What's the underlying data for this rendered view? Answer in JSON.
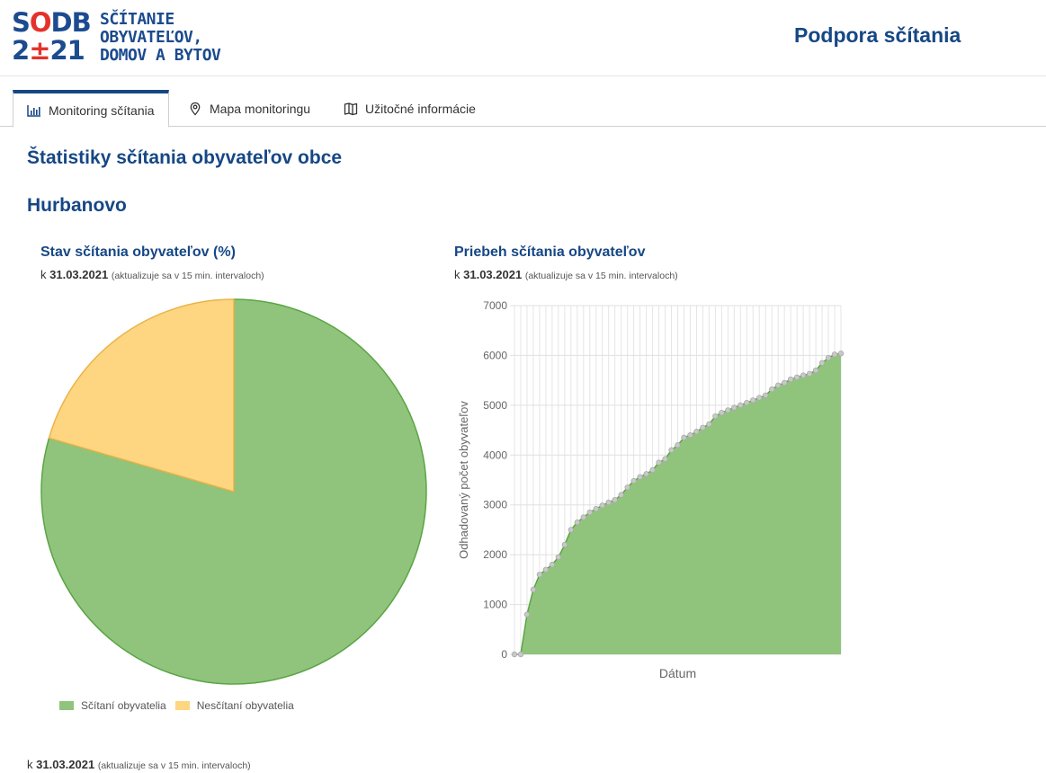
{
  "brand": {
    "mark_line1_a": "S",
    "mark_line1_b": "O",
    "mark_line1_c": "DB",
    "mark_line2_a": "2",
    "mark_line2_b": "±",
    "mark_line2_c": "21",
    "text_line1": "SČÍTANIE",
    "text_line2": "OBYVATEĽOV,",
    "text_line3": "DOMOV A BYTOV",
    "colors": {
      "blue": "#1c4b8f",
      "red": "#e4322b"
    }
  },
  "header": {
    "title": "Podpora sčítania"
  },
  "tabs": [
    {
      "label": "Monitoring sčítania",
      "icon": "bar-chart-icon",
      "active": true
    },
    {
      "label": "Mapa monitoringu",
      "icon": "map-pin-icon",
      "active": false
    },
    {
      "label": "Užitočné informácie",
      "icon": "book-icon",
      "active": false
    }
  ],
  "main": {
    "heading": "Štatistiky sčítania obyvateľov obce",
    "town": "Hurbanovo",
    "date_prefix": "k",
    "date": "31.03.2021",
    "update_note": "(aktualizuje sa v 15 min. intervaloch)"
  },
  "pie_panel": {
    "title": "Stav sčítania obyvateľov (%)"
  },
  "line_panel": {
    "title": "Priebeh sčítania obyvateľov"
  },
  "chart_data": [
    {
      "type": "pie",
      "title": "Stav sčítania obyvateľov (%)",
      "slices": [
        {
          "name": "Sčítaní obyvatelia",
          "value": 79.5,
          "color": "#90c47c",
          "stroke": "#5aa544"
        },
        {
          "name": "Nesčítaní obyvatelia",
          "value": 20.5,
          "color": "#fed580",
          "stroke": "#eab44a"
        }
      ],
      "legend": "bottom-left"
    },
    {
      "type": "area",
      "title": "Priebeh sčítania obyvateľov",
      "xlabel": "Dátum",
      "ylabel": "Odhadovaný počet obyvateľov",
      "ylim": [
        0,
        7000
      ],
      "yticks": [
        0,
        1000,
        2000,
        3000,
        4000,
        5000,
        6000,
        7000
      ],
      "grid": true,
      "fill_color": "#90c47c",
      "line_color": "#5aa544",
      "point_color": "#c8c8c8",
      "values": [
        0,
        0,
        800,
        1300,
        1600,
        1700,
        1800,
        1950,
        2200,
        2500,
        2650,
        2750,
        2850,
        2920,
        2990,
        3050,
        3100,
        3200,
        3350,
        3480,
        3560,
        3620,
        3700,
        3850,
        3920,
        4100,
        4200,
        4350,
        4400,
        4470,
        4550,
        4620,
        4780,
        4850,
        4900,
        4950,
        5000,
        5050,
        5100,
        5150,
        5200,
        5320,
        5400,
        5450,
        5520,
        5560,
        5600,
        5630,
        5700,
        5850,
        5950,
        6020,
        6040
      ]
    }
  ]
}
